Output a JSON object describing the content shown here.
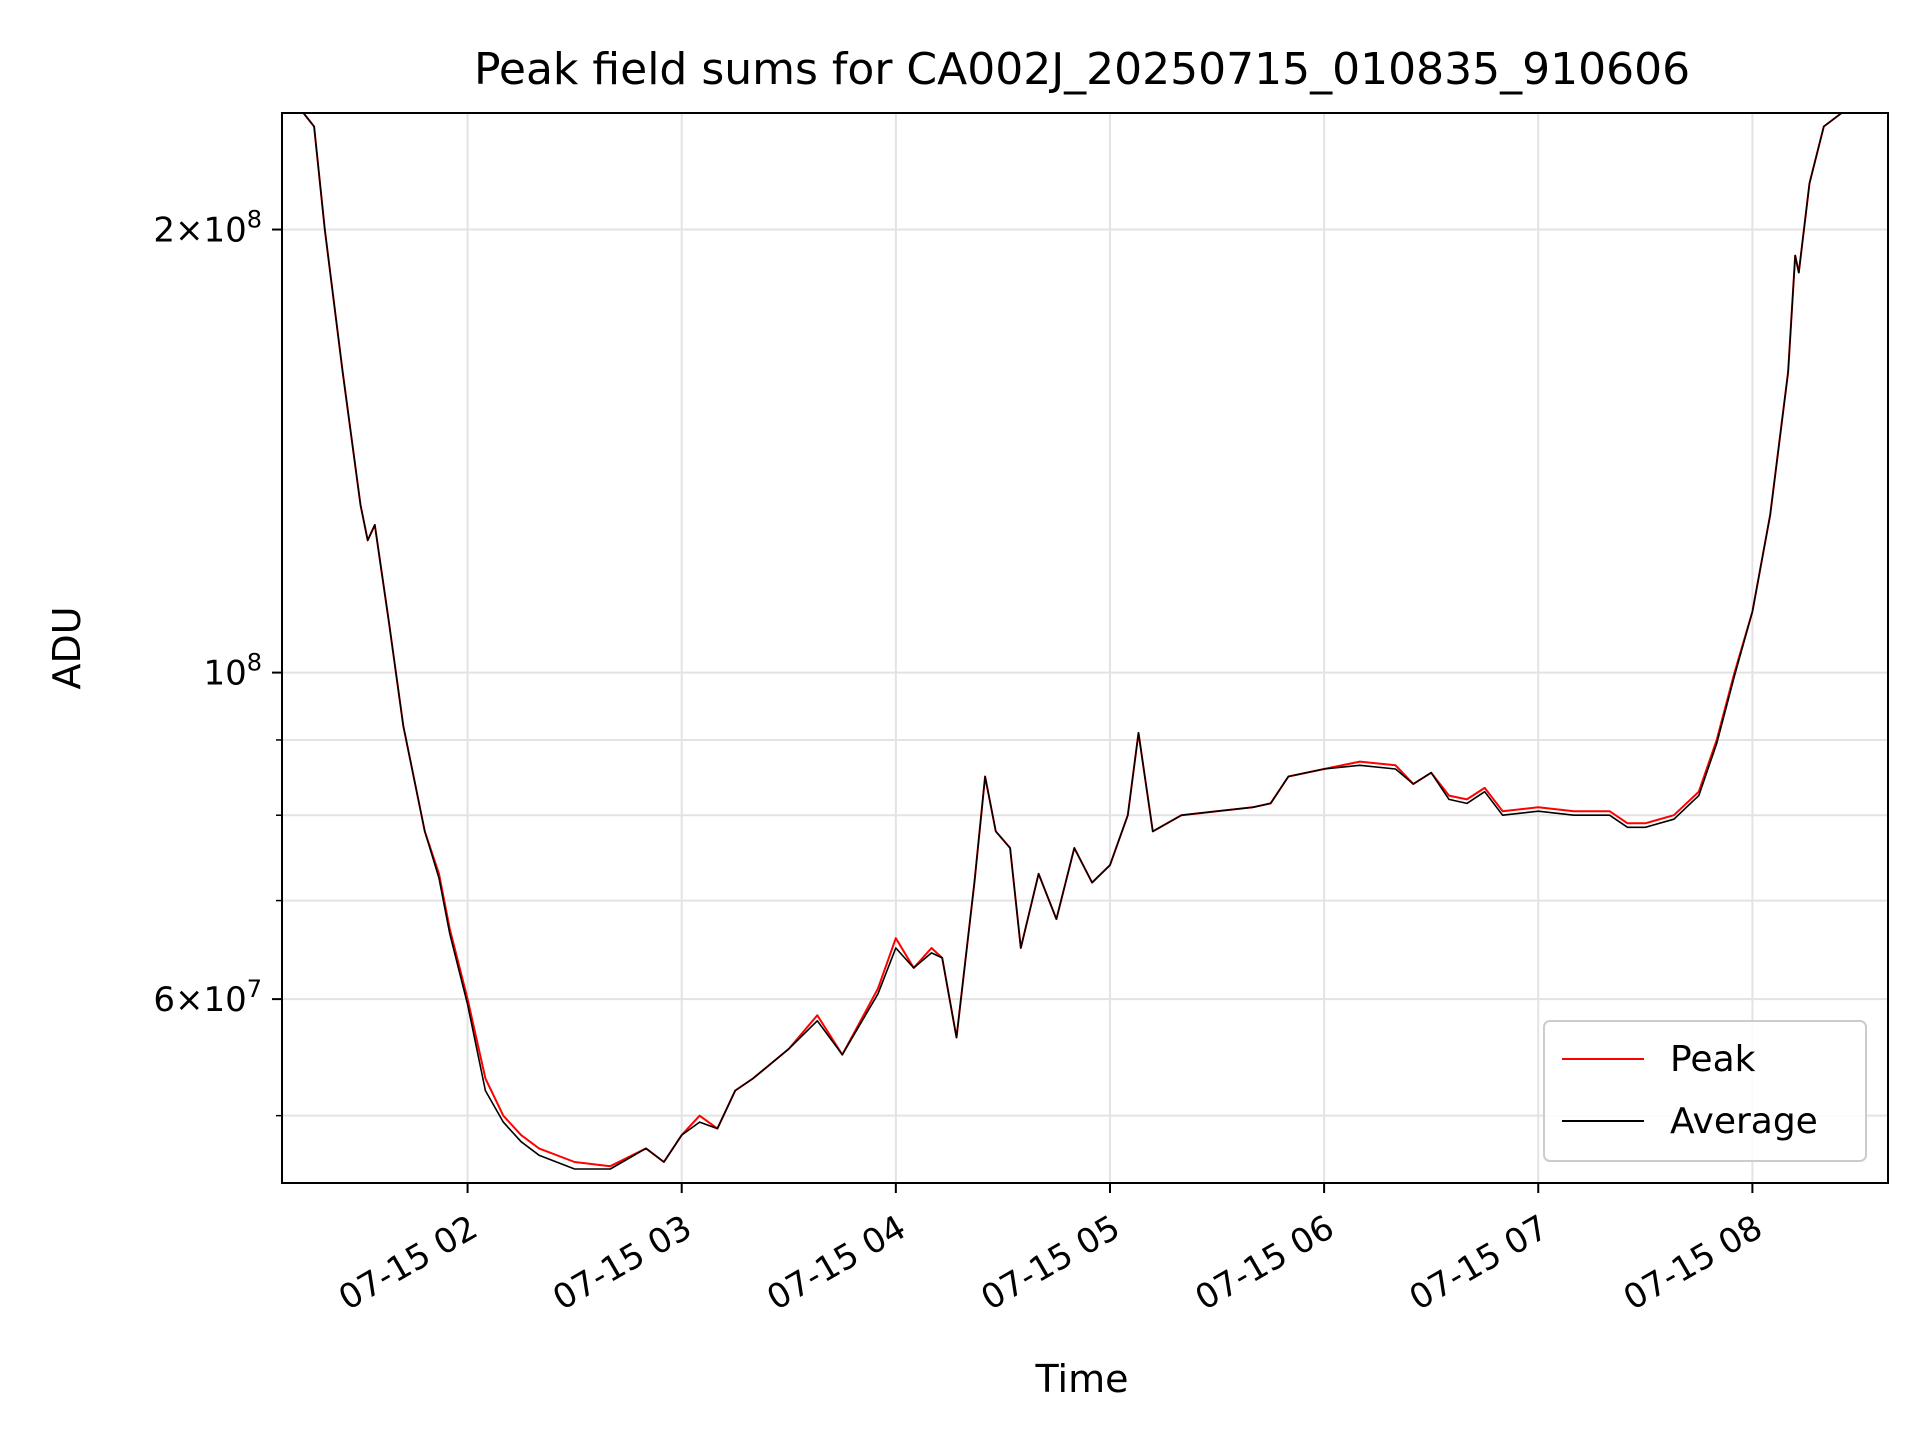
{
  "chart_data": {
    "type": "line",
    "title": "Peak field sums for CA002J_20250715_010835_910606",
    "xlabel": "Time",
    "ylabel": "ADU",
    "x_scale": "time",
    "y_scale": "log",
    "xlim": [
      "07-15 01:08",
      "07-15 08:38"
    ],
    "ylim": [
      45000000,
      240000000
    ],
    "x_ticks": [
      {
        "value": "07-15 02:00",
        "label": "07-15 02"
      },
      {
        "value": "07-15 03:00",
        "label": "07-15 03"
      },
      {
        "value": "07-15 04:00",
        "label": "07-15 04"
      },
      {
        "value": "07-15 05:00",
        "label": "07-15 05"
      },
      {
        "value": "07-15 06:00",
        "label": "07-15 06"
      },
      {
        "value": "07-15 07:00",
        "label": "07-15 07"
      },
      {
        "value": "07-15 08:00",
        "label": "07-15 08"
      }
    ],
    "y_major_ticks": [
      {
        "value": 60000000,
        "base": "6",
        "exp": "7",
        "times": true
      },
      {
        "value": 100000000,
        "base": "10",
        "exp": "8",
        "times": false
      },
      {
        "value": 200000000,
        "base": "2",
        "exp": "8",
        "times": true
      }
    ],
    "y_minor_ticks": [
      50000000,
      70000000,
      80000000,
      90000000
    ],
    "grid": true,
    "legend_position": "lower-right",
    "series": [
      {
        "name": "Peak",
        "color": "#ff0000",
        "points": [
          [
            "07-15 01:08",
            240000000
          ],
          [
            "07-15 01:14",
            240000000
          ],
          [
            "07-15 01:17",
            235000000
          ],
          [
            "07-15 01:20",
            200000000
          ],
          [
            "07-15 01:25",
            160000000
          ],
          [
            "07-15 01:30",
            130000000
          ],
          [
            "07-15 01:32",
            123000000
          ],
          [
            "07-15 01:34",
            126000000
          ],
          [
            "07-15 01:38",
            108000000
          ],
          [
            "07-15 01:42",
            92000000
          ],
          [
            "07-15 01:48",
            78000000
          ],
          [
            "07-15 01:52",
            73000000
          ],
          [
            "07-15 01:55",
            67000000
          ],
          [
            "07-15 02:00",
            60000000
          ],
          [
            "07-15 02:05",
            53000000
          ],
          [
            "07-15 02:10",
            50000000
          ],
          [
            "07-15 02:15",
            48500000
          ],
          [
            "07-15 02:20",
            47500000
          ],
          [
            "07-15 02:30",
            46500000
          ],
          [
            "07-15 02:40",
            46200000
          ],
          [
            "07-15 02:50",
            47500000
          ],
          [
            "07-15 02:55",
            46500000
          ],
          [
            "07-15 03:00",
            48500000
          ],
          [
            "07-15 03:05",
            50000000
          ],
          [
            "07-15 03:10",
            49000000
          ],
          [
            "07-15 03:15",
            52000000
          ],
          [
            "07-15 03:20",
            53000000
          ],
          [
            "07-15 03:30",
            55500000
          ],
          [
            "07-15 03:38",
            58500000
          ],
          [
            "07-15 03:45",
            55000000
          ],
          [
            "07-15 03:55",
            61000000
          ],
          [
            "07-15 04:00",
            66000000
          ],
          [
            "07-15 04:05",
            63000000
          ],
          [
            "07-15 04:10",
            65000000
          ],
          [
            "07-15 04:13",
            64000000
          ],
          [
            "07-15 04:17",
            56500000
          ],
          [
            "07-15 04:22",
            72000000
          ],
          [
            "07-15 04:25",
            85000000
          ],
          [
            "07-15 04:28",
            78000000
          ],
          [
            "07-15 04:32",
            76000000
          ],
          [
            "07-15 04:35",
            65000000
          ],
          [
            "07-15 04:40",
            73000000
          ],
          [
            "07-15 04:45",
            68000000
          ],
          [
            "07-15 04:50",
            76000000
          ],
          [
            "07-15 04:55",
            72000000
          ],
          [
            "07-15 05:00",
            74000000
          ],
          [
            "07-15 05:05",
            80000000
          ],
          [
            "07-15 05:08",
            91000000
          ],
          [
            "07-15 05:12",
            78000000
          ],
          [
            "07-15 05:20",
            80000000
          ],
          [
            "07-15 05:30",
            80500000
          ],
          [
            "07-15 05:40",
            81000000
          ],
          [
            "07-15 05:45",
            81500000
          ],
          [
            "07-15 05:50",
            85000000
          ],
          [
            "07-15 06:00",
            86000000
          ],
          [
            "07-15 06:10",
            87000000
          ],
          [
            "07-15 06:20",
            86500000
          ],
          [
            "07-15 06:25",
            84000000
          ],
          [
            "07-15 06:30",
            85500000
          ],
          [
            "07-15 06:35",
            82500000
          ],
          [
            "07-15 06:40",
            82000000
          ],
          [
            "07-15 06:45",
            83500000
          ],
          [
            "07-15 06:50",
            80500000
          ],
          [
            "07-15 07:00",
            81000000
          ],
          [
            "07-15 07:10",
            80500000
          ],
          [
            "07-15 07:20",
            80500000
          ],
          [
            "07-15 07:25",
            79000000
          ],
          [
            "07-15 07:30",
            79000000
          ],
          [
            "07-15 07:38",
            80000000
          ],
          [
            "07-15 07:45",
            83000000
          ],
          [
            "07-15 07:50",
            90000000
          ],
          [
            "07-15 07:55",
            100000000
          ],
          [
            "07-15 08:00",
            110000000
          ],
          [
            "07-15 08:05",
            128000000
          ],
          [
            "07-15 08:10",
            160000000
          ],
          [
            "07-15 08:12",
            192000000
          ],
          [
            "07-15 08:13",
            187000000
          ],
          [
            "07-15 08:16",
            215000000
          ],
          [
            "07-15 08:20",
            235000000
          ],
          [
            "07-15 08:25",
            240000000
          ],
          [
            "07-15 08:38",
            240000000
          ]
        ]
      },
      {
        "name": "Average",
        "color": "#000000",
        "points": [
          [
            "07-15 01:08",
            240000000
          ],
          [
            "07-15 01:14",
            240000000
          ],
          [
            "07-15 01:17",
            235000000
          ],
          [
            "07-15 01:20",
            200000000
          ],
          [
            "07-15 01:25",
            160000000
          ],
          [
            "07-15 01:30",
            130000000
          ],
          [
            "07-15 01:32",
            123000000
          ],
          [
            "07-15 01:34",
            126000000
          ],
          [
            "07-15 01:38",
            108000000
          ],
          [
            "07-15 01:42",
            92000000
          ],
          [
            "07-15 01:48",
            78000000
          ],
          [
            "07-15 01:52",
            72500000
          ],
          [
            "07-15 01:55",
            66500000
          ],
          [
            "07-15 02:00",
            59500000
          ],
          [
            "07-15 02:05",
            52000000
          ],
          [
            "07-15 02:10",
            49500000
          ],
          [
            "07-15 02:15",
            48000000
          ],
          [
            "07-15 02:20",
            47000000
          ],
          [
            "07-15 02:30",
            46000000
          ],
          [
            "07-15 02:40",
            46000000
          ],
          [
            "07-15 02:50",
            47500000
          ],
          [
            "07-15 02:55",
            46500000
          ],
          [
            "07-15 03:00",
            48500000
          ],
          [
            "07-15 03:05",
            49500000
          ],
          [
            "07-15 03:10",
            49000000
          ],
          [
            "07-15 03:15",
            52000000
          ],
          [
            "07-15 03:20",
            53000000
          ],
          [
            "07-15 03:30",
            55500000
          ],
          [
            "07-15 03:38",
            58000000
          ],
          [
            "07-15 03:45",
            55000000
          ],
          [
            "07-15 03:55",
            60500000
          ],
          [
            "07-15 04:00",
            65000000
          ],
          [
            "07-15 04:05",
            63000000
          ],
          [
            "07-15 04:10",
            64500000
          ],
          [
            "07-15 04:13",
            64000000
          ],
          [
            "07-15 04:17",
            56500000
          ],
          [
            "07-15 04:22",
            72000000
          ],
          [
            "07-15 04:25",
            85000000
          ],
          [
            "07-15 04:28",
            78000000
          ],
          [
            "07-15 04:32",
            76000000
          ],
          [
            "07-15 04:35",
            65000000
          ],
          [
            "07-15 04:40",
            73000000
          ],
          [
            "07-15 04:45",
            68000000
          ],
          [
            "07-15 04:50",
            76000000
          ],
          [
            "07-15 04:55",
            72000000
          ],
          [
            "07-15 05:00",
            74000000
          ],
          [
            "07-15 05:05",
            80000000
          ],
          [
            "07-15 05:08",
            91000000
          ],
          [
            "07-15 05:12",
            78000000
          ],
          [
            "07-15 05:20",
            80000000
          ],
          [
            "07-15 05:30",
            80500000
          ],
          [
            "07-15 05:40",
            81000000
          ],
          [
            "07-15 05:45",
            81500000
          ],
          [
            "07-15 05:50",
            85000000
          ],
          [
            "07-15 06:00",
            86000000
          ],
          [
            "07-15 06:10",
            86500000
          ],
          [
            "07-15 06:20",
            86000000
          ],
          [
            "07-15 06:25",
            84000000
          ],
          [
            "07-15 06:30",
            85500000
          ],
          [
            "07-15 06:35",
            82000000
          ],
          [
            "07-15 06:40",
            81500000
          ],
          [
            "07-15 06:45",
            83000000
          ],
          [
            "07-15 06:50",
            80000000
          ],
          [
            "07-15 07:00",
            80500000
          ],
          [
            "07-15 07:10",
            80000000
          ],
          [
            "07-15 07:20",
            80000000
          ],
          [
            "07-15 07:25",
            78500000
          ],
          [
            "07-15 07:30",
            78500000
          ],
          [
            "07-15 07:38",
            79500000
          ],
          [
            "07-15 07:45",
            82500000
          ],
          [
            "07-15 07:50",
            89500000
          ],
          [
            "07-15 07:55",
            99500000
          ],
          [
            "07-15 08:00",
            110000000
          ],
          [
            "07-15 08:05",
            128000000
          ],
          [
            "07-15 08:10",
            160000000
          ],
          [
            "07-15 08:12",
            192000000
          ],
          [
            "07-15 08:13",
            187000000
          ],
          [
            "07-15 08:16",
            215000000
          ],
          [
            "07-15 08:20",
            235000000
          ],
          [
            "07-15 08:25",
            240000000
          ],
          [
            "07-15 08:38",
            240000000
          ]
        ]
      }
    ]
  }
}
